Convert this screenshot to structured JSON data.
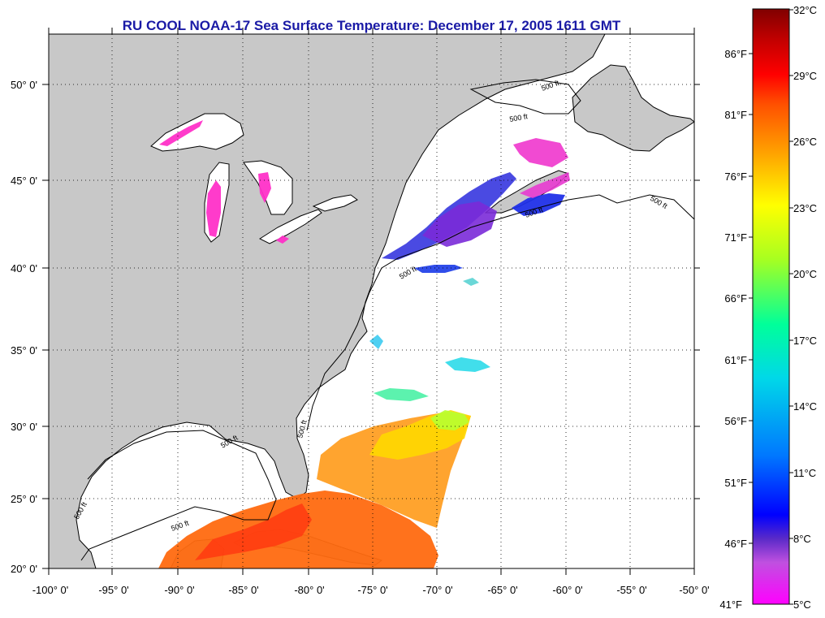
{
  "title": "RU COOL  NOAA-17  Sea Surface Temperature:  December 17, 2005 1611 GMT",
  "map": {
    "lat_ticks": [
      "50° 0'",
      "45° 0'",
      "40° 0'",
      "35° 0'",
      "30° 0'",
      "25° 0'",
      "20° 0'"
    ],
    "lon_ticks": [
      "-100° 0'",
      "-95° 0'",
      "-90° 0'",
      "-85° 0'",
      "-80° 0'",
      "-75° 0'",
      "-70° 0'",
      "-65° 0'",
      "-60° 0'",
      "-55° 0'",
      "-50° 0'"
    ],
    "lat_range": [
      20,
      52.4
    ],
    "lon_range": [
      -100,
      -50
    ],
    "isobath_labels": [
      "500 ft",
      "500 ft",
      "500 ft",
      "500 ft",
      "500 ft",
      "500 ft",
      "500 ft",
      "500 ft",
      "500 ft"
    ],
    "land_color": "#c8c8c8",
    "grid": true
  },
  "colorbar": {
    "celsius_labels": [
      "32°C",
      "29°C",
      "26°C",
      "23°C",
      "20°C",
      "17°C",
      "14°C",
      "11°C",
      "8°C",
      "5°C"
    ],
    "fahrenheit_labels": [
      "86°F",
      "81°F",
      "76°F",
      "71°F",
      "66°F",
      "61°F",
      "56°F",
      "51°F",
      "46°F",
      "41°F"
    ],
    "celsius_range": [
      5,
      32
    ],
    "colors": [
      "#ff00ff",
      "#c050e0",
      "#5a2ac8",
      "#0000ff",
      "#0078ff",
      "#00d8e8",
      "#00ff9a",
      "#a8ff20",
      "#ffff00",
      "#ffa000",
      "#ff5000",
      "#ff0000",
      "#c00000",
      "#800000"
    ]
  }
}
